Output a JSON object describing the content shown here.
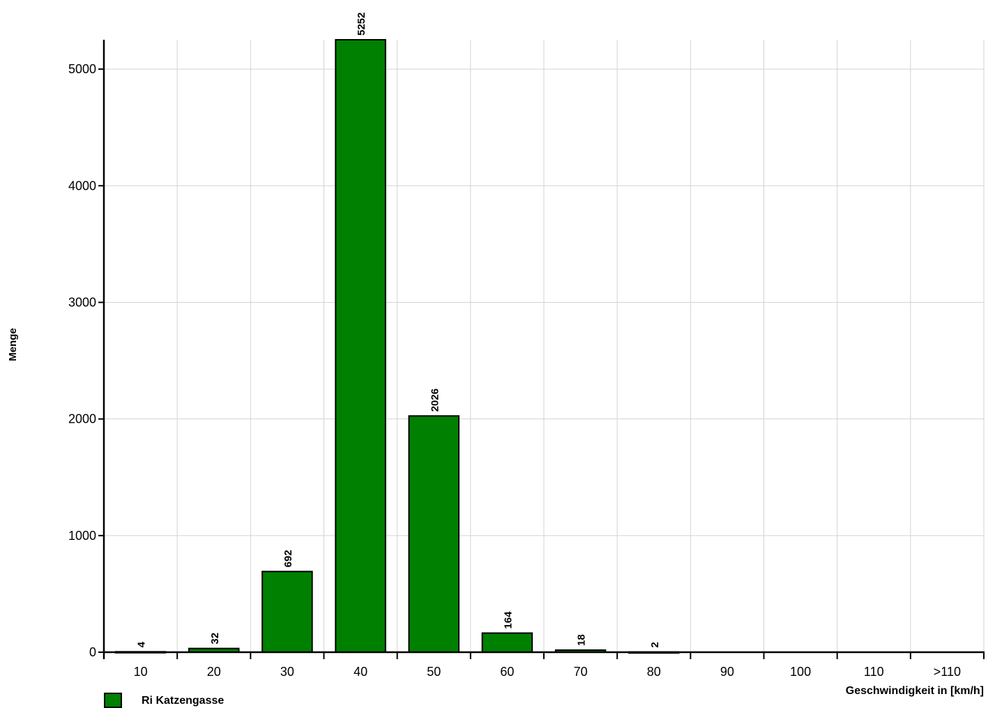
{
  "chart_data": {
    "type": "bar",
    "categories": [
      "10",
      "20",
      "30",
      "40",
      "50",
      "60",
      "70",
      "80",
      "90",
      "100",
      "110",
      ">110"
    ],
    "series": [
      {
        "name": "Ri Katzengasse",
        "values": [
          4,
          32,
          692,
          5252,
          2026,
          164,
          18,
          2,
          0,
          0,
          0,
          0
        ],
        "color": "#008000"
      }
    ],
    "data_labels": [
      "4",
      "32",
      "692",
      "5252",
      "2026",
      "164",
      "18",
      "2",
      "",
      "",
      "",
      ""
    ],
    "xlabel": "Geschwindigkeit in [km/h]",
    "ylabel": "Menge",
    "ylim": [
      0,
      5252
    ],
    "yticks": [
      0,
      1000,
      2000,
      3000,
      4000,
      5000
    ],
    "grid": true,
    "legend_position": "bottom-left"
  },
  "colors": {
    "bar": "#008000",
    "grid": "#d3d3d3",
    "axis": "#000000"
  }
}
